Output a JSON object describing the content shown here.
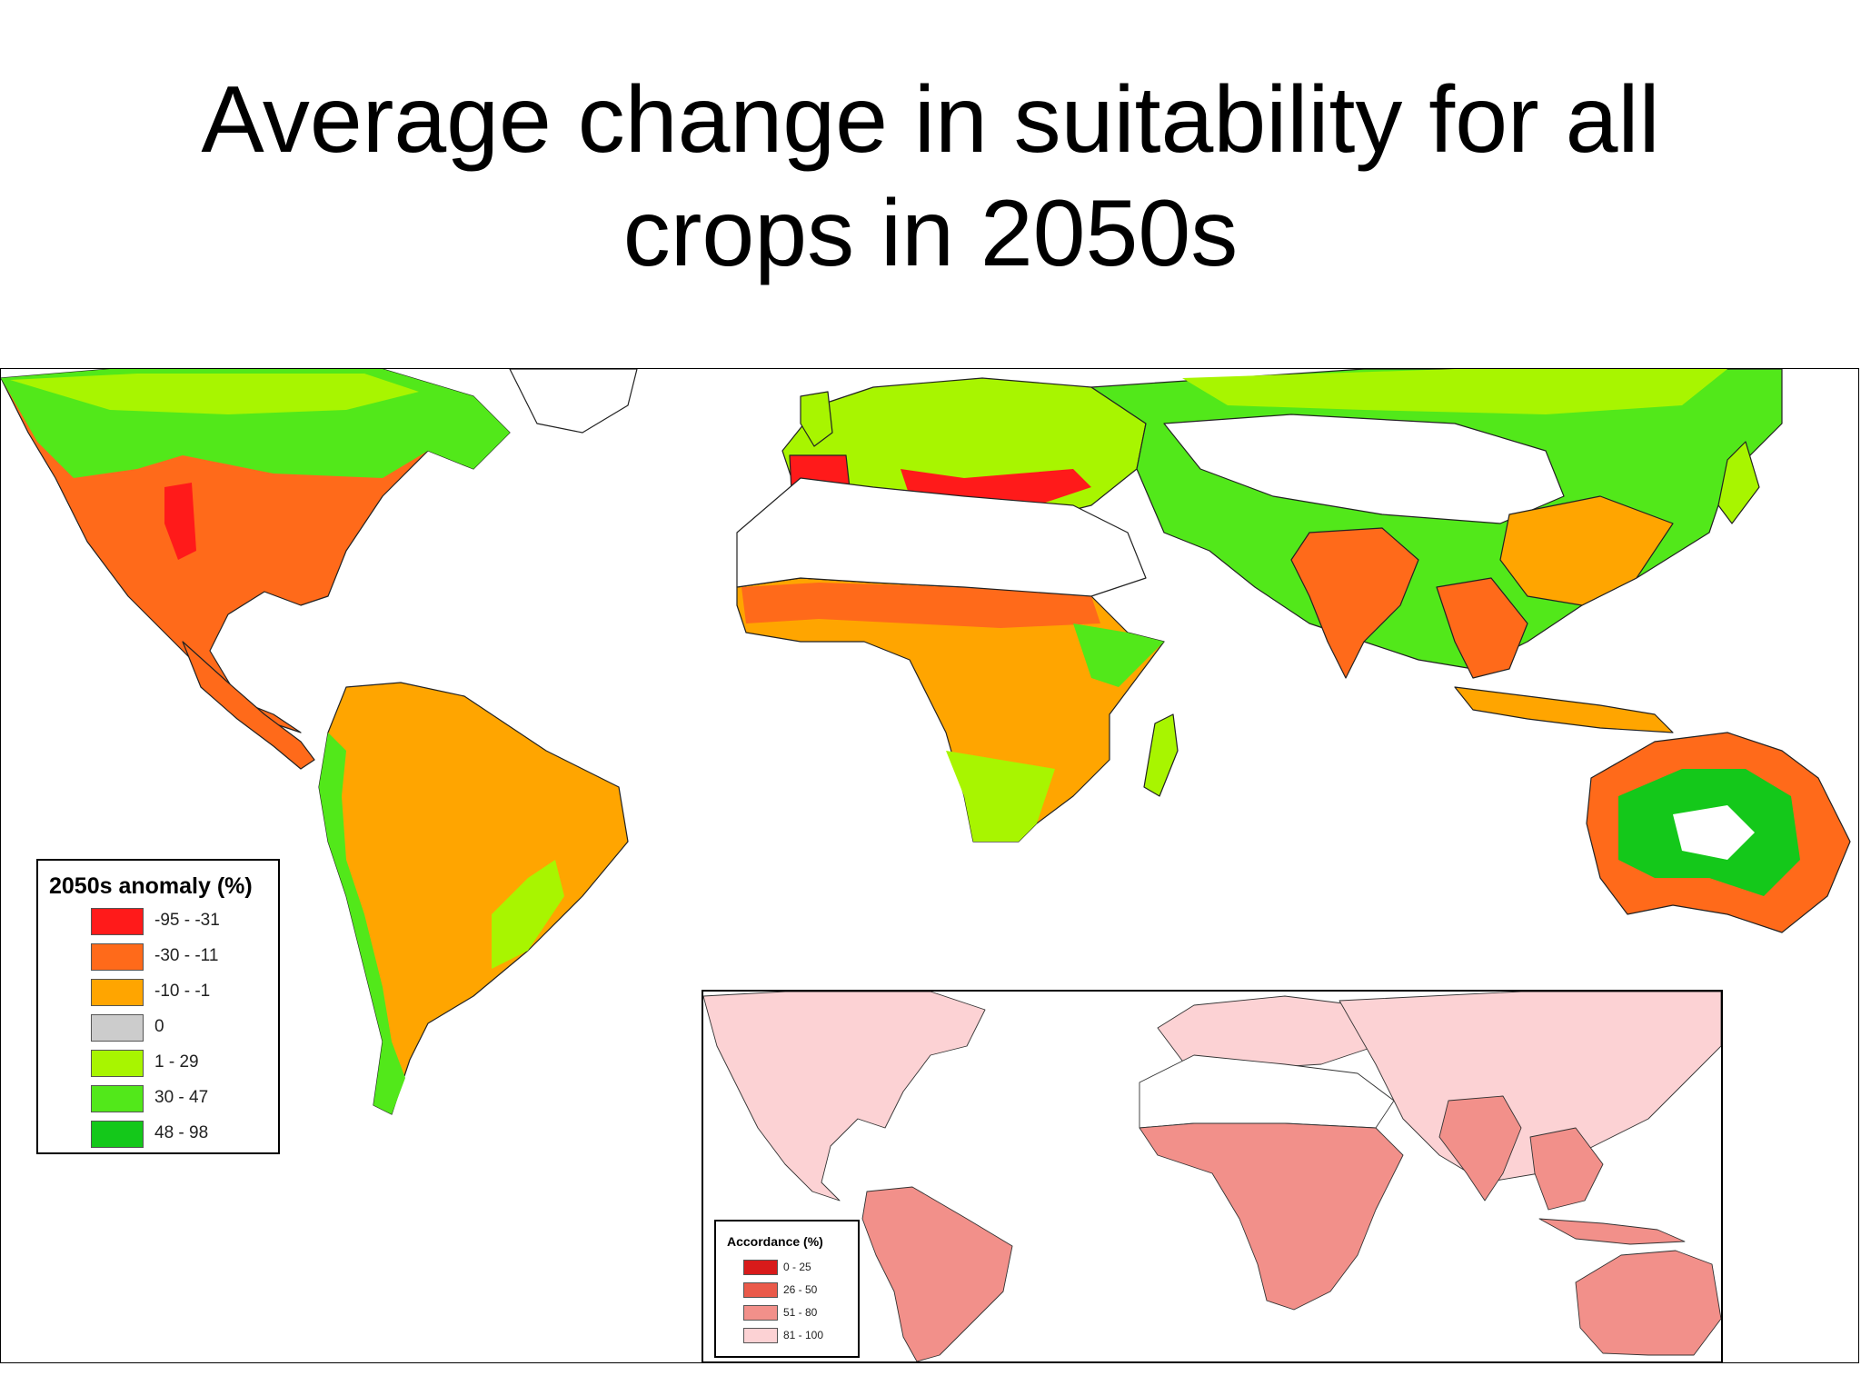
{
  "title": {
    "line1": "Average change in suitability for all",
    "line2": "crops in 2050s"
  },
  "legend": {
    "title": "2050s anomaly (%)",
    "items": [
      {
        "label": "-95 - -31",
        "color": "#ff1a1a"
      },
      {
        "label": "-30 - -11",
        "color": "#ff6a1a"
      },
      {
        "label": "-10 - -1",
        "color": "#ffa500"
      },
      {
        "label": "0",
        "color": "#cccccc"
      },
      {
        "label": "1 - 29",
        "color": "#a8f500"
      },
      {
        "label": "30 - 47",
        "color": "#52e81a"
      },
      {
        "label": "48 - 98",
        "color": "#14c81a"
      }
    ]
  },
  "inset_legend": {
    "title": "Accordance (%)",
    "items": [
      {
        "label": "0 - 25",
        "color": "#d81a1a"
      },
      {
        "label": "26 - 50",
        "color": "#ea5a4a"
      },
      {
        "label": "51 - 80",
        "color": "#f2908a"
      },
      {
        "label": "81 - 100",
        "color": "#fcd2d4"
      }
    ]
  }
}
